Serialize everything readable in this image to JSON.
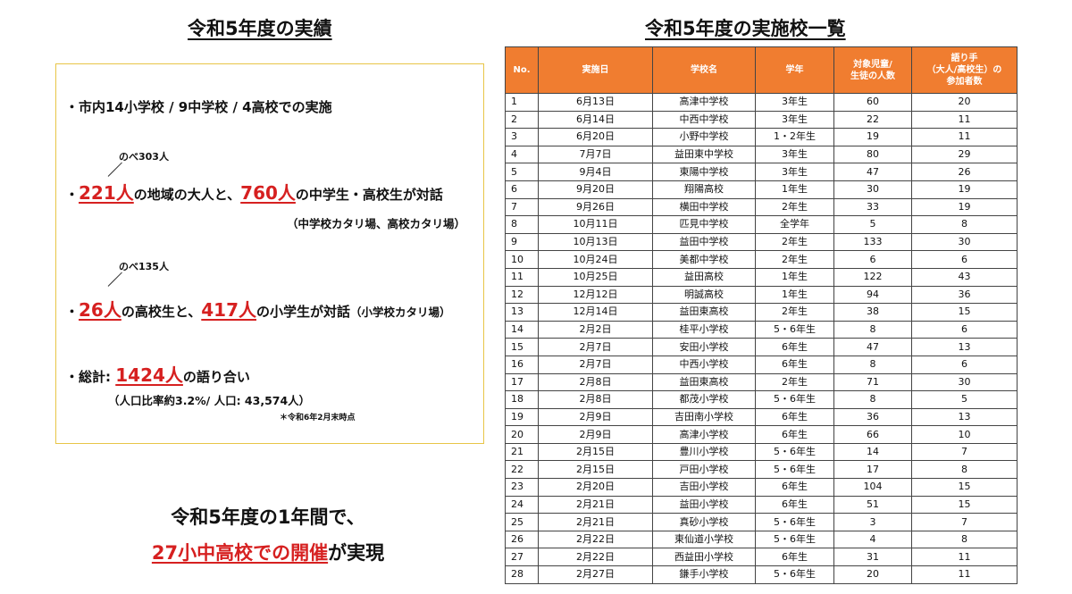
{
  "left_title": "令和5年度の実績",
  "right_title": "令和5年度の実施校一覧",
  "summary": {
    "line1": "・市内14小学校 / 9中学校 / 4高校での実施",
    "note1": "のべ303人",
    "line2": {
      "prefix": "・",
      "num1": "221人",
      "mid": "の地域の大人と、",
      "num2": "760人",
      "suffix": "の中学生・高校生が対話"
    },
    "line2_sub": "（中学校カタリ場、高校カタリ場）",
    "note2": "のべ135人",
    "line3": {
      "prefix": "・",
      "num1": "26人",
      "mid": "の高校生と、",
      "num2": "417人",
      "suffix": "の小学生が対話",
      "small": "（小学校カタリ場）"
    },
    "line4": {
      "prefix": "・総計: ",
      "num": "1424人",
      "suffix": "の語り合い"
    },
    "line4_sub": "（人口比率約3.2%/ 人口: 43,574人）",
    "footnote": "＊令和6年2月末時点"
  },
  "bottom": {
    "line1": "令和5年度の1年間で、",
    "highlight": "27小中高校での開催",
    "suffix": "が実現"
  },
  "table": {
    "headers": [
      "No.",
      "実施日",
      "学校名",
      "学年",
      "対象児童/\n生徒の人数",
      "語り手\n（大人/高校生）の\n参加者数"
    ],
    "rows": [
      [
        "1",
        "6月13日",
        "高津中学校",
        "3年生",
        "60",
        "20"
      ],
      [
        "2",
        "6月14日",
        "中西中学校",
        "3年生",
        "22",
        "11"
      ],
      [
        "3",
        "6月20日",
        "小野中学校",
        "1・2年生",
        "19",
        "11"
      ],
      [
        "4",
        "7月7日",
        "益田東中学校",
        "3年生",
        "80",
        "29"
      ],
      [
        "5",
        "9月4日",
        "東陽中学校",
        "3年生",
        "47",
        "26"
      ],
      [
        "6",
        "9月20日",
        "翔陽高校",
        "1年生",
        "30",
        "19"
      ],
      [
        "7",
        "9月26日",
        "横田中学校",
        "2年生",
        "33",
        "19"
      ],
      [
        "8",
        "10月11日",
        "匹見中学校",
        "全学年",
        "5",
        "8"
      ],
      [
        "9",
        "10月13日",
        "益田中学校",
        "2年生",
        "133",
        "30"
      ],
      [
        "10",
        "10月24日",
        "美都中学校",
        "2年生",
        "6",
        "6"
      ],
      [
        "11",
        "10月25日",
        "益田高校",
        "1年生",
        "122",
        "43"
      ],
      [
        "12",
        "12月12日",
        "明誠高校",
        "1年生",
        "94",
        "36"
      ],
      [
        "13",
        "12月14日",
        "益田東高校",
        "2年生",
        "38",
        "15"
      ],
      [
        "14",
        "2月2日",
        "桂平小学校",
        "5・6年生",
        "8",
        "6"
      ],
      [
        "15",
        "2月7日",
        "安田小学校",
        "6年生",
        "47",
        "13"
      ],
      [
        "16",
        "2月7日",
        "中西小学校",
        "6年生",
        "8",
        "6"
      ],
      [
        "17",
        "2月8日",
        "益田東高校",
        "2年生",
        "71",
        "30"
      ],
      [
        "18",
        "2月8日",
        "都茂小学校",
        "5・6年生",
        "8",
        "5"
      ],
      [
        "19",
        "2月9日",
        "吉田南小学校",
        "6年生",
        "36",
        "13"
      ],
      [
        "20",
        "2月9日",
        "高津小学校",
        "6年生",
        "66",
        "10"
      ],
      [
        "21",
        "2月15日",
        "豊川小学校",
        "5・6年生",
        "14",
        "7"
      ],
      [
        "22",
        "2月15日",
        "戸田小学校",
        "5・6年生",
        "17",
        "8"
      ],
      [
        "23",
        "2月20日",
        "吉田小学校",
        "6年生",
        "104",
        "15"
      ],
      [
        "24",
        "2月21日",
        "益田小学校",
        "6年生",
        "51",
        "15"
      ],
      [
        "25",
        "2月21日",
        "真砂小学校",
        "5・6年生",
        "3",
        "7"
      ],
      [
        "26",
        "2月22日",
        "東仙道小学校",
        "5・6年生",
        "4",
        "8"
      ],
      [
        "27",
        "2月22日",
        "西益田小学校",
        "6年生",
        "31",
        "11"
      ],
      [
        "28",
        "2月27日",
        "鎌手小学校",
        "5・6年生",
        "20",
        "11"
      ]
    ]
  },
  "colors": {
    "accent_red": "#d62020",
    "header_orange": "#f07d30",
    "box_border": "#e8c547"
  }
}
